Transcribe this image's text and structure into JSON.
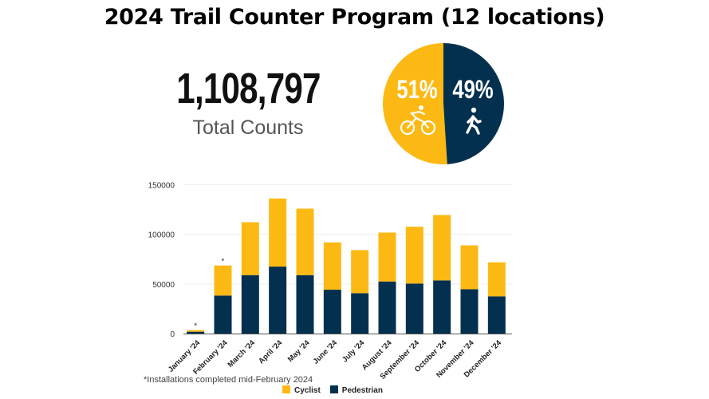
{
  "header": {
    "title": "2024 Trail Counter Program (12 locations)"
  },
  "summary": {
    "total_value": "1,108,797",
    "total_label": "Total Counts"
  },
  "pie": {
    "slices": [
      {
        "label": "51%",
        "value": 51,
        "mode": "Cyclist",
        "icon": "bicycle-icon",
        "color": "#FDB913"
      },
      {
        "label": "49%",
        "value": 49,
        "mode": "Pedestrian",
        "icon": "pedestrian-icon",
        "color": "#04304F"
      }
    ]
  },
  "chart_data": {
    "type": "bar",
    "stacked": true,
    "categories": [
      "January '24",
      "February '24",
      "March '24",
      "April '24",
      "May '24",
      "June '24",
      "July '24",
      "August '24",
      "September '24",
      "October '24",
      "November '24",
      "December '24"
    ],
    "series": [
      {
        "name": "Pedestrian",
        "color": "#04304F",
        "values": [
          1900,
          38300,
          58900,
          67500,
          58900,
          44200,
          40700,
          52500,
          50400,
          53600,
          44700,
          37500
        ]
      },
      {
        "name": "Cyclist",
        "color": "#FDB913",
        "values": [
          1600,
          30300,
          53300,
          68600,
          67000,
          47700,
          43400,
          49300,
          57300,
          65900,
          44200,
          34300
        ]
      }
    ],
    "annotations": [
      {
        "category": "January '24",
        "text": "*"
      },
      {
        "category": "February '24",
        "text": "*"
      }
    ],
    "yticks": [
      "0",
      "50000",
      "100000",
      "150000"
    ],
    "ylim": [
      0,
      150000
    ],
    "grid": true,
    "legend": "bottom",
    "footnote": "*Installations completed mid-February 2024"
  }
}
